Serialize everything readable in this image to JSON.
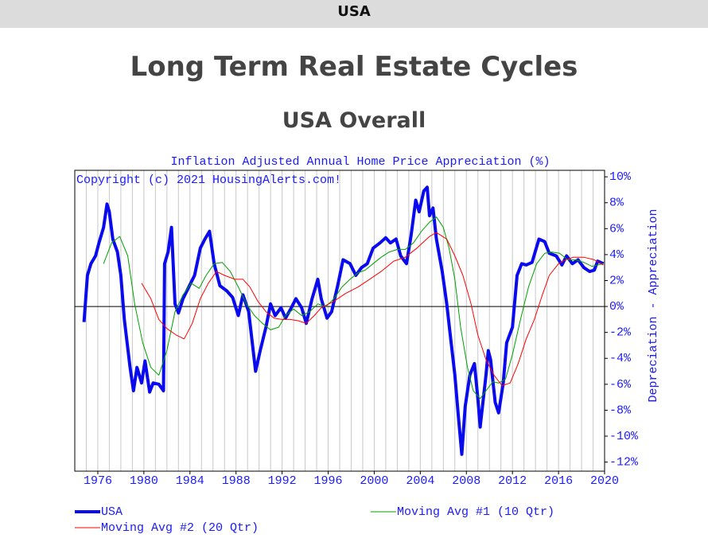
{
  "header": "USA",
  "title": "Long Term Real Estate Cycles",
  "subtitle": "USA Overall",
  "chart_data": {
    "type": "line",
    "title": "Inflation Adjusted Annual Home Price Appreciation (%)",
    "annotation": "Copyright (c) 2021 HousingAlerts.com!",
    "ylabel": "Depreciation - Appreciation",
    "xlim": [
      1974,
      2020
    ],
    "xticks": [
      1976,
      1980,
      1984,
      1988,
      1992,
      1996,
      2000,
      2004,
      2008,
      2012,
      2016,
      2020
    ],
    "minor_xticks": [
      1975,
      1976,
      1977,
      1978,
      1979,
      1980,
      1981,
      1982,
      1983,
      1984,
      1985,
      1986,
      1987,
      1988,
      1989,
      1990,
      1991,
      1992,
      1993,
      1994,
      1995,
      1996,
      1997,
      1998,
      1999,
      2000,
      2001,
      2002,
      2003,
      2004,
      2005,
      2006,
      2007,
      2008,
      2009,
      2010,
      2011,
      2012,
      2013,
      2014,
      2015,
      2016,
      2017,
      2018,
      2019
    ],
    "ylim": [
      -12.7,
      10.5
    ],
    "yticks": [
      {
        "value": 10,
        "label": "10%"
      },
      {
        "value": 8,
        "label": "8%"
      },
      {
        "value": 6,
        "label": "6%"
      },
      {
        "value": 4,
        "label": "4%"
      },
      {
        "value": 2,
        "label": "2%"
      },
      {
        "value": 0,
        "label": "0%"
      },
      {
        "value": -2,
        "label": "-2%"
      },
      {
        "value": -4,
        "label": "-4%"
      },
      {
        "value": -6,
        "label": "-6%"
      },
      {
        "value": -8,
        "label": "-8%"
      },
      {
        "value": -10,
        "label": "-10%"
      },
      {
        "value": -12,
        "label": "-12%"
      }
    ],
    "zero_line": true,
    "grid": true,
    "series": [
      {
        "name": "USA",
        "color": "#0a0aee",
        "width": 4,
        "x": [
          1974.8,
          1975.1,
          1975.4,
          1975.8,
          1976.1,
          1976.5,
          1976.8,
          1977.0,
          1977.3,
          1977.7,
          1978.0,
          1978.3,
          1978.8,
          1979.1,
          1979.4,
          1979.8,
          1980.1,
          1980.5,
          1980.8,
          1981.3,
          1981.7,
          1981.8,
          1982.1,
          1982.4,
          1982.7,
          1983.0,
          1983.4,
          1983.9,
          1984.4,
          1984.9,
          1985.3,
          1985.7,
          1986.1,
          1986.6,
          1987.2,
          1987.7,
          1988.2,
          1988.6,
          1989.1,
          1989.7,
          1990.1,
          1990.6,
          1991.0,
          1991.4,
          1991.9,
          1992.3,
          1992.8,
          1993.2,
          1993.7,
          1994.1,
          1994.6,
          1995.1,
          1995.4,
          1995.9,
          1996.3,
          1996.8,
          1997.3,
          1997.9,
          1998.4,
          1998.9,
          1999.4,
          1999.9,
          2000.5,
          2001.0,
          2001.4,
          2001.9,
          2002.3,
          2002.8,
          2003.2,
          2003.6,
          2003.9,
          2004.3,
          2004.6,
          2004.8,
          2005.1,
          2005.4,
          2005.9,
          2006.3,
          2006.6,
          2007.0,
          2007.3,
          2007.6,
          2007.9,
          2008.3,
          2008.7,
          2009.0,
          2009.2,
          2009.7,
          2009.9,
          2010.1,
          2010.5,
          2010.8,
          2011.2,
          2011.5,
          2012.0,
          2012.4,
          2012.8,
          2013.2,
          2013.7,
          2014.3,
          2014.8,
          2015.2,
          2015.8,
          2016.3,
          2016.7,
          2017.2,
          2017.7,
          2018.2,
          2018.7,
          2019.1,
          2019.4,
          2019.9
        ],
        "values": [
          -1.2,
          2.4,
          3.3,
          3.9,
          4.9,
          6.1,
          7.9,
          7.3,
          5.2,
          4.2,
          2.4,
          -1.0,
          -4.7,
          -6.5,
          -4.7,
          -5.9,
          -4.2,
          -6.6,
          -5.9,
          -6.0,
          -6.5,
          3.3,
          4.2,
          6.1,
          0.2,
          -0.5,
          0.6,
          1.5,
          2.4,
          4.5,
          5.2,
          5.8,
          3.3,
          1.6,
          1.2,
          0.7,
          -0.7,
          0.9,
          -0.4,
          -5.0,
          -3.4,
          -1.6,
          0.2,
          -0.7,
          -0.1,
          -0.9,
          -0.1,
          0.6,
          -0.1,
          -1.3,
          0.6,
          2.1,
          0.6,
          -0.9,
          -0.4,
          1.5,
          3.6,
          3.3,
          2.4,
          3.0,
          3.3,
          4.5,
          4.9,
          5.3,
          4.9,
          5.2,
          3.9,
          3.3,
          5.5,
          8.2,
          7.3,
          8.9,
          9.2,
          7.0,
          7.6,
          5.2,
          2.7,
          0.2,
          -2.2,
          -5.3,
          -8.4,
          -11.4,
          -7.7,
          -5.3,
          -4.4,
          -7.1,
          -9.3,
          -5.3,
          -3.4,
          -4.1,
          -7.4,
          -8.2,
          -5.9,
          -2.8,
          -1.6,
          2.4,
          3.3,
          3.2,
          3.4,
          5.2,
          5.0,
          4.1,
          3.9,
          3.2,
          3.9,
          3.3,
          3.6,
          3.0,
          2.7,
          2.8,
          3.5,
          3.3
        ]
      },
      {
        "name": "Moving Avg #1 (10 Qtr)",
        "color": "#00a000",
        "width": 1,
        "x": [
          1976.5,
          1977.2,
          1977.9,
          1978.6,
          1979.2,
          1979.9,
          1980.6,
          1981.3,
          1982.0,
          1982.7,
          1983.4,
          1984.1,
          1984.8,
          1985.4,
          1986.1,
          1986.8,
          1987.5,
          1988.2,
          1988.9,
          1989.6,
          1990.3,
          1991.0,
          1991.7,
          1992.3,
          1993.0,
          1993.7,
          1994.4,
          1995.1,
          1995.8,
          1996.5,
          1997.2,
          1997.9,
          1998.6,
          1999.2,
          1999.9,
          2000.6,
          2001.3,
          2002.0,
          2002.7,
          2003.4,
          2004.1,
          2004.8,
          2005.4,
          2006.0,
          2006.5,
          2007.0,
          2007.5,
          2008.1,
          2008.6,
          2009.2,
          2009.7,
          2010.3,
          2010.8,
          2011.4,
          2012.0,
          2012.7,
          2013.4,
          2014.1,
          2014.8,
          2015.4,
          2016.1,
          2016.8,
          2017.5,
          2018.2,
          2018.9,
          2019.9
        ],
        "values": [
          3.3,
          4.9,
          5.4,
          3.9,
          0.2,
          -2.8,
          -4.7,
          -5.3,
          -3.4,
          -0.4,
          0.9,
          1.8,
          1.4,
          2.4,
          3.3,
          3.4,
          2.7,
          1.5,
          0.2,
          -0.7,
          -1.3,
          -1.8,
          -1.6,
          -0.7,
          -0.2,
          -0.7,
          -0.4,
          0.2,
          0,
          0.6,
          1.5,
          2.1,
          2.6,
          2.8,
          3.3,
          3.8,
          4.2,
          4.4,
          4.4,
          4.9,
          5.8,
          6.5,
          6.9,
          6.1,
          4.5,
          2.1,
          -1.6,
          -4.7,
          -6.5,
          -7.1,
          -6.5,
          -5.8,
          -5.9,
          -5.6,
          -3.7,
          -1.0,
          1.5,
          3.3,
          4.1,
          4.2,
          4.1,
          3.6,
          3.6,
          3.4,
          3.1,
          3.3
        ]
      },
      {
        "name": "Moving Avg #2 (20 Qtr)",
        "color": "#ff0000",
        "width": 1,
        "x": [
          1979.8,
          1980.6,
          1981.3,
          1982.0,
          1982.8,
          1983.5,
          1984.2,
          1984.9,
          1985.6,
          1986.3,
          1987.0,
          1987.9,
          1988.6,
          1989.2,
          1989.9,
          1990.6,
          1991.3,
          1992.0,
          1992.7,
          1993.4,
          1994.1,
          1994.8,
          1995.4,
          1996.5,
          1997.5,
          1998.6,
          1999.6,
          2000.6,
          2001.7,
          2002.7,
          2003.7,
          2004.8,
          2005.4,
          2006.3,
          2007.0,
          2007.7,
          2008.4,
          2009.0,
          2009.7,
          2010.4,
          2011.1,
          2011.8,
          2012.5,
          2013.2,
          2013.9,
          2014.6,
          2015.2,
          2016.0,
          2016.6,
          2017.3,
          2018.2,
          2019.1,
          2019.9
        ],
        "values": [
          1.8,
          0.6,
          -1.0,
          -1.7,
          -2.2,
          -2.5,
          -1.3,
          0.6,
          1.8,
          2.7,
          2.4,
          2.1,
          2.1,
          1.5,
          0.4,
          -0.4,
          -0.9,
          -1.0,
          -1.0,
          -1.1,
          -1.3,
          -0.7,
          -0.1,
          0.4,
          1.0,
          1.5,
          2.1,
          2.7,
          3.5,
          3.8,
          4.5,
          5.4,
          5.7,
          5.2,
          3.9,
          2.4,
          0.2,
          -2.2,
          -4.1,
          -5.3,
          -6.1,
          -5.9,
          -4.4,
          -2.5,
          -1.0,
          0.9,
          2.4,
          3.3,
          3.6,
          3.8,
          3.8,
          3.6,
          3.2
        ]
      }
    ]
  }
}
